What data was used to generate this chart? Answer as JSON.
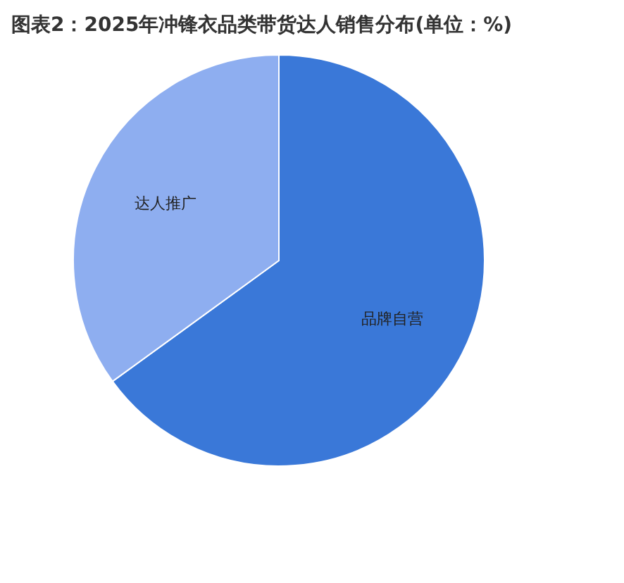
{
  "chart_data": {
    "type": "pie",
    "title": "图表2：2025年冲锋衣品类带货达人销售分布(单位：%)",
    "categories": [
      "品牌自营",
      "达人推广"
    ],
    "values": [
      65,
      35
    ],
    "colors": [
      "#3a78d8",
      "#8eaef0"
    ]
  }
}
